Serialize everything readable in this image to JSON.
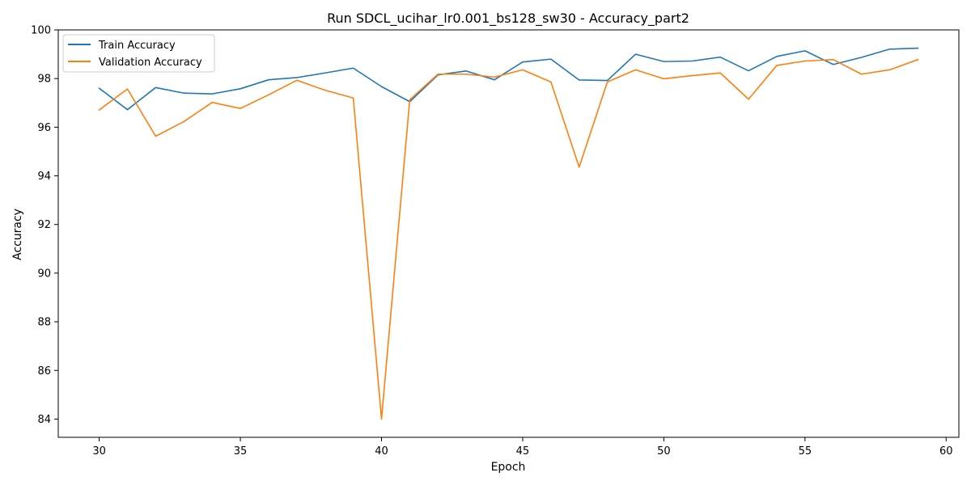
{
  "chart_data": {
    "type": "line",
    "title": "Run SDCL_ucihar_lr0.001_bs128_sw30 - Accuracy_part2",
    "xlabel": "Epoch",
    "ylabel": "Accuracy",
    "xlim": [
      28.55,
      60.45
    ],
    "ylim": [
      83.25,
      100.0
    ],
    "xticks": [
      30,
      35,
      40,
      45,
      50,
      55,
      60
    ],
    "yticks": [
      84,
      86,
      88,
      90,
      92,
      94,
      96,
      98,
      100
    ],
    "grid": false,
    "legend_position": "top-left",
    "x": [
      30,
      31,
      32,
      33,
      34,
      35,
      36,
      37,
      38,
      39,
      40,
      41,
      42,
      43,
      44,
      45,
      46,
      47,
      48,
      49,
      50,
      51,
      52,
      53,
      54,
      55,
      56,
      57,
      58,
      59
    ],
    "series": [
      {
        "name": "Train Accuracy",
        "color": "#1f77b4",
        "values": [
          97.6,
          96.72,
          97.63,
          97.4,
          97.37,
          97.58,
          97.95,
          98.04,
          98.23,
          98.43,
          97.67,
          97.05,
          98.15,
          98.31,
          97.95,
          98.68,
          98.8,
          97.94,
          97.92,
          99.0,
          98.7,
          98.72,
          98.88,
          98.32,
          98.91,
          99.14,
          98.58,
          98.87,
          99.21,
          99.25
        ]
      },
      {
        "name": "Validation Accuracy",
        "color": "#ff7f0e",
        "values": [
          96.71,
          97.57,
          95.63,
          96.23,
          97.02,
          96.77,
          97.33,
          97.93,
          97.52,
          97.2,
          84.0,
          97.13,
          98.18,
          98.18,
          98.06,
          98.36,
          97.86,
          94.36,
          97.86,
          98.36,
          97.99,
          98.12,
          98.23,
          97.15,
          98.54,
          98.72,
          98.78,
          98.18,
          98.36,
          98.78
        ]
      }
    ]
  }
}
